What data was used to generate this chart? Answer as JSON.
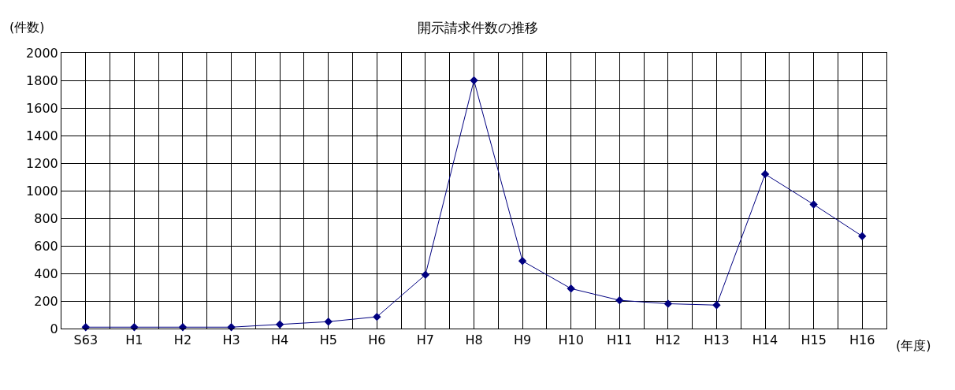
{
  "chart_data": {
    "type": "line",
    "title": "開示請求件数の推移",
    "ylabel": "(件数)",
    "xlabel": "(年度)",
    "categories": [
      "S63",
      "H1",
      "H2",
      "H3",
      "H4",
      "H5",
      "H6",
      "H7",
      "H8",
      "H9",
      "H10",
      "H11",
      "H12",
      "H13",
      "H14",
      "H15",
      "H16"
    ],
    "series": [
      {
        "color": "#000080",
        "values": [
          10,
          10,
          10,
          10,
          30,
          50,
          85,
          390,
          1800,
          490,
          290,
          205,
          180,
          170,
          1120,
          900,
          670
        ]
      }
    ],
    "ylim": [
      0,
      2000
    ],
    "yticks": [
      0,
      200,
      400,
      600,
      800,
      1000,
      1200,
      1400,
      1600,
      1800,
      2000
    ],
    "grid": true,
    "marker": "diamond",
    "line_style": "solid"
  }
}
